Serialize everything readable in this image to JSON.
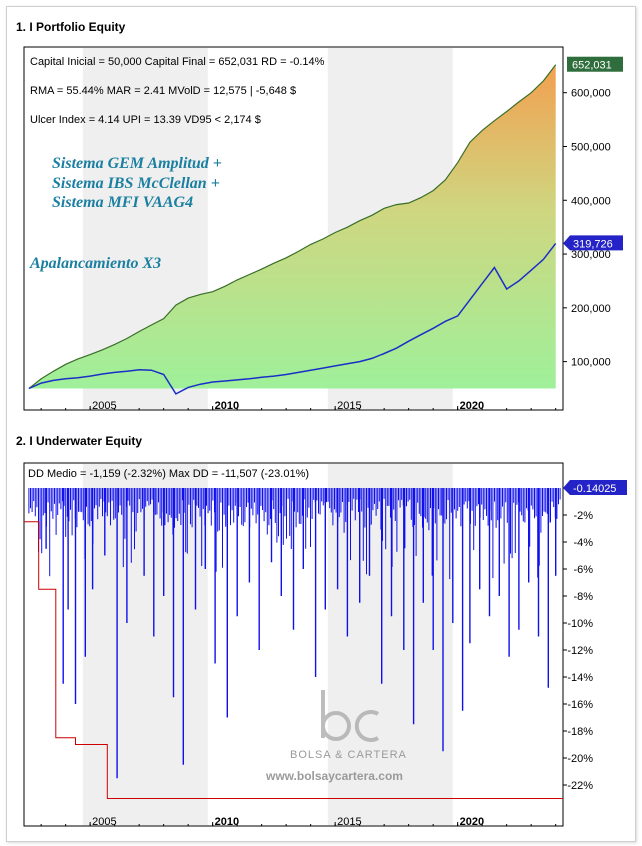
{
  "chart_data": [
    {
      "type": "area",
      "title": "1. I Portfolio Equity",
      "stats": [
        "Capital Inicial = 50,000  Capital Final = 652,031   RD = -0.14%",
        "RMA = 55.44%   MAR = 2.41   MVolD = 12,575 | -5,648 $",
        "Ulcer Index = 4.14   UPI = 13.39   VD95 < 2,174 $"
      ],
      "annotations": [
        "Sistema GEM Amplitud +",
        "Sistema IBS McClellan +",
        "Sistema MFI VAAG4",
        "Apalancamiento X3"
      ],
      "x_ticks": [
        "2005",
        "2010",
        "2015",
        "2020"
      ],
      "y_ticks": [
        "100,000",
        "200,000",
        "300,000",
        "400,000",
        "500,000",
        "600,000"
      ],
      "xlim": [
        2002.3,
        2024.3
      ],
      "ylim": [
        10000,
        685000
      ],
      "series": [
        {
          "color": "#3a6e2a",
          "last_label": "652,031",
          "x": [
            2002.5,
            2003,
            2003.5,
            2004,
            2004.5,
            2005,
            2005.5,
            2006,
            2006.5,
            2007,
            2007.5,
            2008,
            2008.5,
            2009,
            2009.5,
            2010,
            2010.5,
            2011,
            2011.5,
            2012,
            2012.5,
            2013,
            2013.5,
            2014,
            2014.5,
            2015,
            2015.5,
            2016,
            2016.5,
            2017,
            2017.5,
            2018,
            2018.5,
            2019,
            2019.5,
            2020,
            2020.5,
            2021,
            2021.5,
            2022,
            2022.5,
            2023,
            2023.5,
            2024
          ],
          "values": [
            50000,
            68000,
            82000,
            95000,
            105000,
            113000,
            122000,
            132000,
            143000,
            156000,
            168000,
            180000,
            205000,
            218000,
            225000,
            230000,
            240000,
            252000,
            262000,
            272000,
            283000,
            293000,
            305000,
            318000,
            328000,
            340000,
            350000,
            362000,
            372000,
            385000,
            392000,
            395000,
            405000,
            418000,
            438000,
            470000,
            508000,
            530000,
            548000,
            565000,
            583000,
            600000,
            622000,
            652031
          ]
        },
        {
          "color": "#1a2fc8",
          "last_label": "319,726",
          "x": [
            2002.5,
            2003,
            2003.5,
            2004,
            2004.5,
            2005,
            2005.5,
            2006,
            2006.5,
            2007,
            2007.5,
            2008,
            2008.5,
            2009,
            2009.5,
            2010,
            2010.5,
            2011,
            2011.5,
            2012,
            2012.5,
            2013,
            2013.5,
            2014,
            2014.5,
            2015,
            2015.5,
            2016,
            2016.5,
            2017,
            2017.5,
            2018,
            2018.5,
            2019,
            2019.5,
            2020,
            2020.5,
            2021,
            2021.5,
            2022,
            2022.5,
            2023,
            2023.5,
            2024
          ],
          "values": [
            50000,
            60000,
            65000,
            68000,
            70000,
            73000,
            77000,
            80000,
            82000,
            85000,
            84000,
            76000,
            40000,
            52000,
            58000,
            62000,
            64000,
            66000,
            68000,
            71000,
            73000,
            76000,
            80000,
            84000,
            88000,
            92000,
            96000,
            100000,
            106000,
            115000,
            125000,
            138000,
            150000,
            162000,
            175000,
            185000,
            215000,
            245000,
            275000,
            235000,
            250000,
            270000,
            290000,
            319726
          ]
        }
      ]
    },
    {
      "type": "area",
      "title": "2. I Underwater Equity",
      "stats": "DD Medio = -1,159 (-2.32%)        Max DD = -11,507 (-23.01%)",
      "x_ticks": [
        "2005",
        "2010",
        "2015",
        "2020"
      ],
      "y_ticks": [
        "-2%",
        "-4%",
        "-6%",
        "-8%",
        "-10%",
        "-12%",
        "-14%",
        "-16%",
        "-18%",
        "-20%",
        "-22%"
      ],
      "xlim": [
        2002.3,
        2024.3
      ],
      "ylim": [
        -24,
        0
      ],
      "last_label": "-0.14025",
      "series": [
        {
          "name": "drawdown",
          "color": "#1010ee",
          "spikes_x": [
            2003.2,
            2003.9,
            2004.1,
            2004.4,
            2004.8,
            2005.1,
            2005.6,
            2006.1,
            2006.5,
            2007.2,
            2007.6,
            2008.0,
            2008.4,
            2008.8,
            2009.3,
            2009.7,
            2010.1,
            2010.6,
            2011.0,
            2011.5,
            2011.9,
            2012.4,
            2012.8,
            2013.3,
            2013.7,
            2014.2,
            2014.6,
            2015.1,
            2015.5,
            2016.0,
            2016.4,
            2016.9,
            2017.3,
            2017.8,
            2018.2,
            2018.6,
            2019.0,
            2019.4,
            2019.8,
            2020.2,
            2020.5,
            2020.9,
            2021.3,
            2021.7,
            2022.1,
            2022.5,
            2022.9,
            2023.3,
            2023.7,
            2024.0
          ],
          "spikes_v": [
            -4.5,
            -14.5,
            -9.0,
            -16.0,
            -12.5,
            -7.5,
            -5.0,
            -21.5,
            -10.0,
            -6.5,
            -11.0,
            -8.0,
            -15.5,
            -20.5,
            -9.0,
            -6.0,
            -13.0,
            -17.0,
            -9.5,
            -7.0,
            -12.0,
            -5.5,
            -8.0,
            -10.5,
            -6.0,
            -14.0,
            -9.0,
            -7.5,
            -11.0,
            -8.5,
            -6.5,
            -14.5,
            -9.5,
            -12.0,
            -17.5,
            -8.5,
            -12.0,
            -19.5,
            -10.0,
            -16.5,
            -11.5,
            -7.5,
            -9.5,
            -8.0,
            -12.5,
            -10.5,
            -7.0,
            -11.0,
            -14.8,
            -6.5
          ]
        },
        {
          "name": "max drawdown",
          "color": "#cc0000",
          "x": [
            2002.3,
            2002.9,
            2002.9,
            2003.6,
            2003.6,
            2004.4,
            2004.4,
            2005.7,
            2005.7,
            2024.3
          ],
          "values": [
            -2.5,
            -2.5,
            -7.5,
            -7.5,
            -18.5,
            -18.5,
            -19.0,
            -19.0,
            -23.0,
            -23.0
          ]
        }
      ]
    }
  ],
  "watermark": {
    "brand": "BOLSA & CARTERA",
    "url": "www.bolsaycartera.com"
  }
}
